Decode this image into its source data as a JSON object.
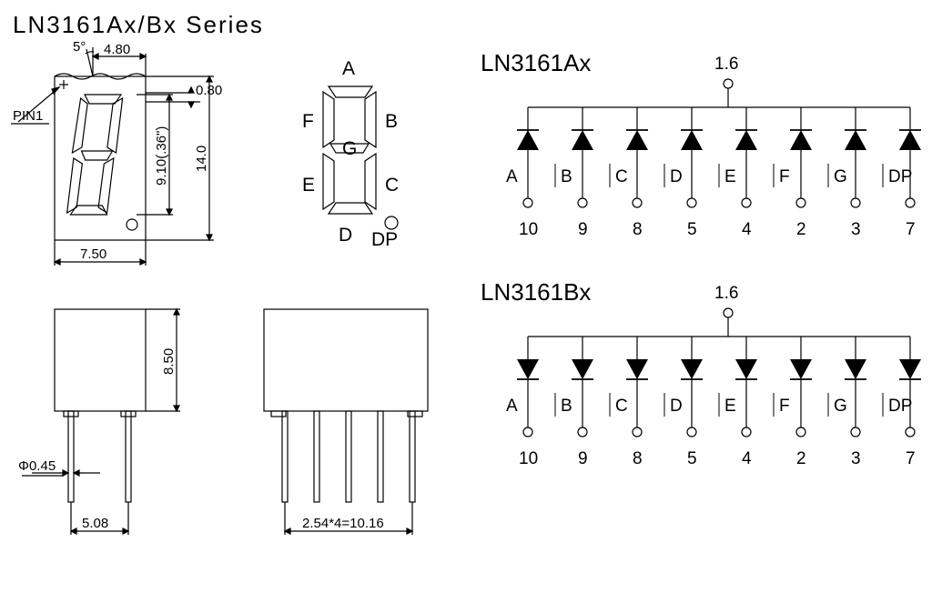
{
  "title": "LN3161Ax/Bx  Series",
  "mechanical": {
    "tilt_angle": "5°",
    "top_width": "4.80",
    "seg_width": "0.80",
    "digit_height": "9.10(.36\")",
    "total_height": "14.0",
    "total_width": "7.50",
    "side_height": "8.50",
    "pin_diameter": "Φ0.45",
    "bottom_pitch": "5.08",
    "wide_pitch": "2.54*4=10.16",
    "pin1_label": "PIN1"
  },
  "segments": {
    "A": "A",
    "B": "B",
    "C": "C",
    "D": "D",
    "E": "E",
    "F": "F",
    "G": "G",
    "DP": "DP"
  },
  "schematic_a": {
    "title": "LN3161Ax",
    "common_pin": "1.6",
    "labels": [
      "A",
      "B",
      "C",
      "D",
      "E",
      "F",
      "G",
      "DP"
    ],
    "pins": [
      "10",
      "9",
      "8",
      "5",
      "4",
      "2",
      "3",
      "7"
    ]
  },
  "schematic_b": {
    "title": "LN3161Bx",
    "common_pin": "1.6",
    "labels": [
      "A",
      "B",
      "C",
      "D",
      "E",
      "F",
      "G",
      "DP"
    ],
    "pins": [
      "10",
      "9",
      "8",
      "5",
      "4",
      "2",
      "3",
      "7"
    ]
  },
  "colors": {
    "line": "#000000",
    "bg": "#ffffff"
  },
  "style": {
    "stroke_width": 1.2,
    "thick_stroke": 2.2,
    "font_small": 15,
    "font_med": 19,
    "font_large": 21,
    "font_title": 26
  }
}
